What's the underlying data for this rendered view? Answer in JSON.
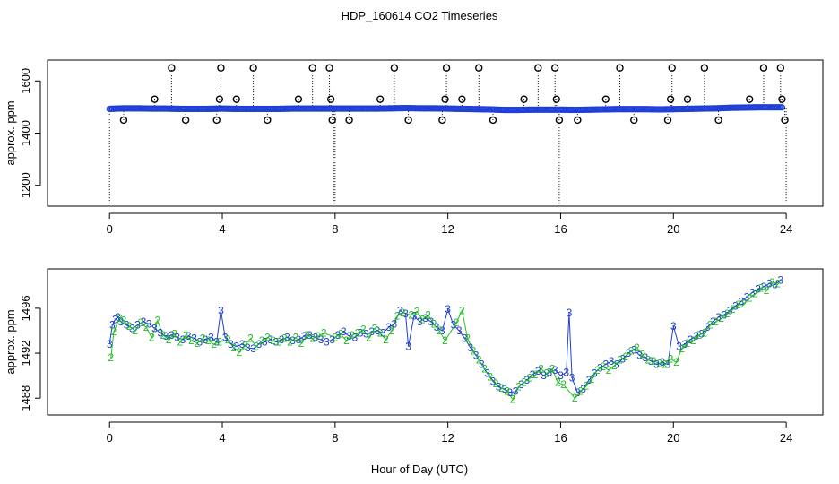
{
  "title": "HDP_160614  CO2 Timeseries",
  "xlabel": "Hour of Day (UTC)",
  "colors": {
    "series_blue": "#1f3fd6",
    "series_green": "#22c022",
    "outlier": "#000000"
  },
  "chart_data": [
    {
      "type": "scatter",
      "panel": "top",
      "ylabel": "approx. ppm",
      "xlim": [
        -2.2,
        25.3
      ],
      "ylim": [
        1120,
        1680
      ],
      "xticks": [
        0,
        4,
        8,
        12,
        16,
        20,
        24
      ],
      "yticks": [
        1200,
        1400,
        1600
      ],
      "baseline_ppm": 1494,
      "series": [
        {
          "values_hours": [
            0,
            0.5,
            1,
            1.5,
            2,
            2.5,
            3,
            3.5,
            4,
            4.5,
            5,
            5.5,
            6,
            6.5,
            7,
            7.5,
            8,
            8.5,
            9,
            9.5,
            10,
            10.5,
            11,
            11.5,
            12,
            12.5,
            13,
            13.5,
            14,
            14.5,
            15,
            15.5,
            16,
            16.5,
            17,
            17.5,
            18,
            18.5,
            19,
            19.5,
            20,
            20.5,
            21,
            21.5,
            22,
            22.5,
            23,
            23.5,
            23.9
          ],
          "values_ppm": [
            1493,
            1495,
            1495,
            1494,
            1494,
            1493,
            1493,
            1493,
            1494,
            1493,
            1493,
            1493,
            1493,
            1494,
            1494,
            1494,
            1494,
            1494,
            1494,
            1494,
            1495,
            1496,
            1495,
            1495,
            1494,
            1493,
            1492,
            1491,
            1489,
            1489,
            1490,
            1490,
            1490,
            1489,
            1490,
            1491,
            1492,
            1492,
            1492,
            1491,
            1492,
            1493,
            1494,
            1495,
            1497,
            1498,
            1499,
            1499,
            1499
          ]
        }
      ],
      "outliers": [
        {
          "x": 0.5,
          "y": 1450
        },
        {
          "x": 1.6,
          "y": 1530
        },
        {
          "x": 2.2,
          "y": 1650
        },
        {
          "x": 2.7,
          "y": 1450
        },
        {
          "x": 3.8,
          "y": 1450
        },
        {
          "x": 3.9,
          "y": 1530
        },
        {
          "x": 3.95,
          "y": 1650
        },
        {
          "x": 4.5,
          "y": 1530
        },
        {
          "x": 5.1,
          "y": 1650
        },
        {
          "x": 5.6,
          "y": 1450
        },
        {
          "x": 6.7,
          "y": 1530
        },
        {
          "x": 7.2,
          "y": 1650
        },
        {
          "x": 7.8,
          "y": 1650
        },
        {
          "x": 7.85,
          "y": 1530
        },
        {
          "x": 7.9,
          "y": 1450
        },
        {
          "x": 8.5,
          "y": 1450
        },
        {
          "x": 9.6,
          "y": 1530
        },
        {
          "x": 10.1,
          "y": 1650
        },
        {
          "x": 10.6,
          "y": 1450
        },
        {
          "x": 11.8,
          "y": 1450
        },
        {
          "x": 11.9,
          "y": 1530
        },
        {
          "x": 11.95,
          "y": 1650
        },
        {
          "x": 12.5,
          "y": 1530
        },
        {
          "x": 13.1,
          "y": 1650
        },
        {
          "x": 13.6,
          "y": 1450
        },
        {
          "x": 14.7,
          "y": 1530
        },
        {
          "x": 15.2,
          "y": 1650
        },
        {
          "x": 15.8,
          "y": 1650
        },
        {
          "x": 15.85,
          "y": 1530
        },
        {
          "x": 15.95,
          "y": 1450
        },
        {
          "x": 16.6,
          "y": 1450
        },
        {
          "x": 17.6,
          "y": 1530
        },
        {
          "x": 18.1,
          "y": 1650
        },
        {
          "x": 18.6,
          "y": 1450
        },
        {
          "x": 19.8,
          "y": 1450
        },
        {
          "x": 19.9,
          "y": 1530
        },
        {
          "x": 19.95,
          "y": 1650
        },
        {
          "x": 20.5,
          "y": 1530
        },
        {
          "x": 21.1,
          "y": 1650
        },
        {
          "x": 21.6,
          "y": 1450
        },
        {
          "x": 22.7,
          "y": 1530
        },
        {
          "x": 23.2,
          "y": 1650
        },
        {
          "x": 23.8,
          "y": 1650
        },
        {
          "x": 23.85,
          "y": 1530
        },
        {
          "x": 23.95,
          "y": 1450
        }
      ],
      "dips": [
        {
          "x": 0.0,
          "y": 1125
        },
        {
          "x": 7.95,
          "y": 1130
        },
        {
          "x": 8.0,
          "y": 1130
        },
        {
          "x": 15.95,
          "y": 1130
        },
        {
          "x": 24.0,
          "y": 1140
        }
      ]
    },
    {
      "type": "scatter",
      "panel": "bottom",
      "ylabel": "approx. ppm",
      "xlim": [
        -2.2,
        25.3
      ],
      "ylim": [
        1486.5,
        1499.5
      ],
      "xticks": [
        0,
        4,
        8,
        12,
        16,
        20,
        24
      ],
      "yticks": [
        1488,
        1492,
        1496
      ],
      "series": [
        {
          "name": "3",
          "x": [
            0,
            0.1,
            0.2,
            0.3,
            0.4,
            0.6,
            0.8,
            1.0,
            1.2,
            1.4,
            1.6,
            1.8,
            2.0,
            2.2,
            2.4,
            2.6,
            2.8,
            3.0,
            3.2,
            3.4,
            3.6,
            3.8,
            3.95,
            4.1,
            4.3,
            4.5,
            4.7,
            4.9,
            5.1,
            5.3,
            5.5,
            5.7,
            5.9,
            6.1,
            6.3,
            6.5,
            6.7,
            6.9,
            7.1,
            7.3,
            7.5,
            7.7,
            7.9,
            8.1,
            8.3,
            8.5,
            8.7,
            8.9,
            9.1,
            9.3,
            9.5,
            9.7,
            9.9,
            10.1,
            10.3,
            10.5,
            10.6,
            10.8,
            11.0,
            11.2,
            11.4,
            11.6,
            11.8,
            12.0,
            12.2,
            12.4,
            12.6,
            12.8,
            13.0,
            13.2,
            13.4,
            13.6,
            13.8,
            14.0,
            14.2,
            14.4,
            14.6,
            14.8,
            15.0,
            15.2,
            15.4,
            15.6,
            15.8,
            16.0,
            16.2,
            16.3,
            16.4,
            16.6,
            16.8,
            17.0,
            17.2,
            17.4,
            17.6,
            17.8,
            18.0,
            18.2,
            18.4,
            18.6,
            18.8,
            19.0,
            19.2,
            19.4,
            19.6,
            19.8,
            20.0,
            20.2,
            20.4,
            20.6,
            20.8,
            21.0,
            21.2,
            21.4,
            21.6,
            21.8,
            22.0,
            22.2,
            22.4,
            22.6,
            22.8,
            23.0,
            23.2,
            23.4,
            23.6,
            23.8
          ],
          "y": [
            1492.8,
            1494.5,
            1495.0,
            1495.2,
            1494.8,
            1494.5,
            1494.2,
            1494.5,
            1494.8,
            1494.6,
            1494.2,
            1493.8,
            1493.5,
            1493.6,
            1493.4,
            1493.2,
            1493.5,
            1493.3,
            1493.0,
            1493.2,
            1493.4,
            1493.0,
            1495.8,
            1493.4,
            1492.8,
            1492.6,
            1492.8,
            1492.5,
            1492.4,
            1492.8,
            1493.0,
            1493.2,
            1493.0,
            1493.2,
            1493.4,
            1493.1,
            1493.2,
            1493.5,
            1493.6,
            1493.4,
            1493.2,
            1493.0,
            1493.2,
            1493.6,
            1493.9,
            1493.5,
            1493.4,
            1493.8,
            1493.7,
            1493.9,
            1494.0,
            1493.8,
            1494.3,
            1494.6,
            1495.8,
            1495.5,
            1492.6,
            1495.3,
            1494.8,
            1495.1,
            1494.8,
            1494.3,
            1494.0,
            1495.9,
            1494.5,
            1494.0,
            1493.3,
            1492.5,
            1491.8,
            1491.0,
            1490.2,
            1489.5,
            1489.0,
            1488.8,
            1488.5,
            1488.6,
            1489.2,
            1489.6,
            1490.1,
            1490.4,
            1490.0,
            1490.3,
            1490.5,
            1490.0,
            1490.3,
            1495.6,
            1489.8,
            1488.5,
            1488.8,
            1489.6,
            1490.2,
            1490.7,
            1491.0,
            1491.3,
            1491.0,
            1491.5,
            1492.0,
            1492.3,
            1491.8,
            1491.6,
            1491.3,
            1491.0,
            1491.2,
            1491.0,
            1494.4,
            1492.6,
            1492.8,
            1493.2,
            1493.5,
            1493.7,
            1494.3,
            1494.8,
            1495.2,
            1495.4,
            1495.8,
            1496.2,
            1496.6,
            1497.0,
            1497.4,
            1497.7,
            1497.9,
            1498.2,
            1498.1,
            1498.5
          ]
        },
        {
          "name": "2",
          "x": [
            0.05,
            0.15,
            0.35,
            0.5,
            0.7,
            0.9,
            1.1,
            1.3,
            1.5,
            1.7,
            1.9,
            2.1,
            2.3,
            2.5,
            2.7,
            2.9,
            3.1,
            3.3,
            3.5,
            3.7,
            3.9,
            4.2,
            4.4,
            4.6,
            4.8,
            5.0,
            5.2,
            5.4,
            5.6,
            5.8,
            6.0,
            6.2,
            6.4,
            6.6,
            6.8,
            7.0,
            7.2,
            7.4,
            7.6,
            8.0,
            8.2,
            8.4,
            8.6,
            8.8,
            9.0,
            9.2,
            9.4,
            9.6,
            9.8,
            10.0,
            10.2,
            10.4,
            10.7,
            10.9,
            11.1,
            11.3,
            11.5,
            11.7,
            11.9,
            12.3,
            12.5,
            12.7,
            12.9,
            13.1,
            13.3,
            13.5,
            13.7,
            13.9,
            14.1,
            14.3,
            14.5,
            14.7,
            14.9,
            15.1,
            15.3,
            15.5,
            15.7,
            15.9,
            16.1,
            16.5,
            16.7,
            16.9,
            17.1,
            17.3,
            17.5,
            17.7,
            17.9,
            18.1,
            18.3,
            18.5,
            18.7,
            18.9,
            19.1,
            19.3,
            19.5,
            19.7,
            19.9,
            20.1,
            20.3,
            20.5,
            20.7,
            20.9,
            21.1,
            21.3,
            21.5,
            21.7,
            21.9,
            22.1,
            22.3,
            22.5,
            22.7,
            22.9,
            23.1,
            23.3,
            23.5,
            23.7
          ],
          "y": [
            1491.6,
            1493.9,
            1495.1,
            1494.9,
            1494.4,
            1494.0,
            1494.7,
            1494.3,
            1493.4,
            1494.9,
            1493.6,
            1493.2,
            1493.7,
            1493.0,
            1493.6,
            1493.1,
            1492.9,
            1493.3,
            1493.1,
            1492.8,
            1493.0,
            1493.2,
            1492.5,
            1492.1,
            1492.7,
            1493.3,
            1492.6,
            1493.1,
            1493.4,
            1493.1,
            1493.0,
            1493.3,
            1493.0,
            1493.4,
            1492.9,
            1493.6,
            1493.3,
            1493.5,
            1493.8,
            1493.4,
            1493.7,
            1493.1,
            1493.6,
            1493.8,
            1494.1,
            1493.4,
            1494.2,
            1493.8,
            1493.2,
            1494.0,
            1495.3,
            1495.6,
            1495.4,
            1495.7,
            1495.0,
            1495.4,
            1494.6,
            1494.0,
            1493.1,
            1494.7,
            1495.8,
            1493.3,
            1492.2,
            1491.4,
            1490.6,
            1489.9,
            1489.3,
            1488.9,
            1488.6,
            1487.9,
            1489.0,
            1489.4,
            1489.8,
            1490.1,
            1490.6,
            1490.2,
            1490.6,
            1489.4,
            1489.2,
            1488.0,
            1488.6,
            1489.1,
            1489.7,
            1490.5,
            1490.8,
            1490.5,
            1490.9,
            1491.4,
            1491.7,
            1492.2,
            1492.5,
            1491.9,
            1491.4,
            1491.3,
            1491.1,
            1491.0,
            1491.5,
            1491.2,
            1492.4,
            1492.9,
            1493.1,
            1493.6,
            1493.8,
            1494.5,
            1494.8,
            1495.1,
            1495.5,
            1495.9,
            1496.3,
            1496.4,
            1496.9,
            1497.3,
            1497.8,
            1497.6,
            1498.3,
            1498.2
          ]
        }
      ]
    }
  ]
}
